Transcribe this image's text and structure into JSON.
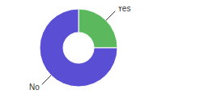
{
  "chart_data": {
    "type": "donut",
    "categories": [
      "Yes",
      "No"
    ],
    "values": [
      25,
      75
    ],
    "colors": [
      "#5cb85c",
      "#5a4fd4"
    ]
  }
}
